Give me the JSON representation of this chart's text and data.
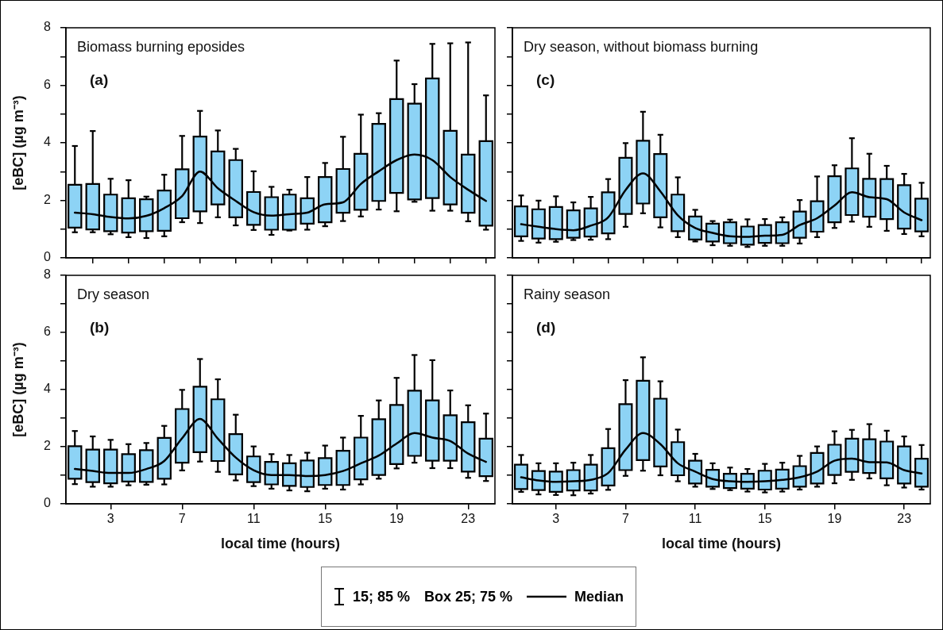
{
  "chart_data": [
    {
      "type": "box",
      "title": "Biomass burning eposides",
      "annotations": [
        "(a)"
      ],
      "ylabel": "[eBC] (µg m⁻³)",
      "color": "#8dd3f5",
      "x": [
        1,
        2,
        3,
        4,
        5,
        6,
        7,
        8,
        9,
        10,
        11,
        12,
        13,
        14,
        15,
        16,
        17,
        18,
        19,
        20,
        21,
        22,
        23,
        24
      ],
      "xlim": [
        0.5,
        24.5
      ],
      "xticks": [
        {
          "value": 2,
          "label": null
        },
        {
          "value": 4,
          "label": null
        },
        {
          "value": 6,
          "label": null
        },
        {
          "value": 8,
          "label": null
        },
        {
          "value": 10,
          "label": null
        },
        {
          "value": 12,
          "label": null
        },
        {
          "value": 14,
          "label": null
        },
        {
          "value": 16,
          "label": null
        },
        {
          "value": 18,
          "label": null
        },
        {
          "value": 20,
          "label": null
        },
        {
          "value": 22,
          "label": null
        },
        {
          "value": 24,
          "label": null
        }
      ],
      "ylim": [
        0,
        8
      ],
      "yticks": [
        0,
        {
          "value": 1,
          "label": null
        },
        2,
        {
          "value": 3,
          "label": null
        },
        4,
        {
          "value": 5,
          "label": null
        },
        6,
        {
          "value": 7,
          "label": null
        },
        8
      ],
      "tick_labels": "y",
      "series": [
        {
          "type": "line",
          "color": "#000000",
          "values": [
            1.57,
            1.52,
            1.42,
            1.37,
            1.46,
            1.73,
            2.15,
            3.0,
            2.42,
            1.98,
            1.59,
            1.47,
            1.52,
            1.57,
            1.86,
            1.93,
            2.57,
            3.01,
            3.4,
            3.59,
            3.4,
            2.81,
            2.37,
            1.98
          ]
        }
      ],
      "boxes": [
        {
          "low": 0.89,
          "q1": 1.05,
          "q3": 2.54,
          "high": 3.89
        },
        {
          "low": 0.89,
          "q1": 0.99,
          "q3": 2.57,
          "high": 4.41
        },
        {
          "low": 0.82,
          "q1": 0.93,
          "q3": 2.2,
          "high": 2.75
        },
        {
          "low": 0.72,
          "q1": 0.88,
          "q3": 2.07,
          "high": 2.7
        },
        {
          "low": 0.69,
          "q1": 0.93,
          "q3": 2.04,
          "high": 2.13
        },
        {
          "low": 0.75,
          "q1": 0.94,
          "q3": 2.34,
          "high": 2.89
        },
        {
          "low": 1.24,
          "q1": 1.38,
          "q3": 3.08,
          "high": 4.24
        },
        {
          "low": 1.21,
          "q1": 1.62,
          "q3": 4.22,
          "high": 5.11
        },
        {
          "low": 1.41,
          "q1": 1.86,
          "q3": 3.7,
          "high": 4.43
        },
        {
          "low": 1.13,
          "q1": 1.41,
          "q3": 3.4,
          "high": 3.79
        },
        {
          "low": 0.97,
          "q1": 1.15,
          "q3": 2.29,
          "high": 3.01
        },
        {
          "low": 0.8,
          "q1": 0.98,
          "q3": 2.11,
          "high": 2.47
        },
        {
          "low": 0.95,
          "q1": 0.98,
          "q3": 2.2,
          "high": 2.37
        },
        {
          "low": 0.98,
          "q1": 1.19,
          "q3": 2.07,
          "high": 2.81
        },
        {
          "low": 1.1,
          "q1": 1.24,
          "q3": 2.81,
          "high": 3.3
        },
        {
          "low": 1.28,
          "q1": 1.57,
          "q3": 3.09,
          "high": 4.21
        },
        {
          "low": 1.44,
          "q1": 1.67,
          "q3": 3.62,
          "high": 4.98
        },
        {
          "low": 1.68,
          "q1": 1.98,
          "q3": 4.66,
          "high": 5.03
        },
        {
          "low": 1.62,
          "q1": 2.26,
          "q3": 5.52,
          "high": 6.86
        },
        {
          "low": 1.95,
          "q1": 2.03,
          "q3": 5.36,
          "high": 6.04
        },
        {
          "low": 1.64,
          "q1": 2.08,
          "q3": 6.24,
          "high": 7.44
        },
        {
          "low": 1.64,
          "q1": 1.86,
          "q3": 4.42,
          "high": 7.46
        },
        {
          "low": 1.27,
          "q1": 1.57,
          "q3": 3.59,
          "high": 7.49
        },
        {
          "low": 0.98,
          "q1": 1.12,
          "q3": 4.06,
          "high": 5.65
        }
      ]
    },
    {
      "type": "box",
      "title": "Dry season, without biomass burning",
      "annotations": [
        "(c)"
      ],
      "color": "#8dd3f5",
      "x": [
        1,
        2,
        3,
        4,
        5,
        6,
        7,
        8,
        9,
        10,
        11,
        12,
        13,
        14,
        15,
        16,
        17,
        18,
        19,
        20,
        21,
        22,
        23,
        24
      ],
      "xlim": [
        0.5,
        24.5
      ],
      "xticks": [
        {
          "value": 2,
          "label": null
        },
        {
          "value": 4,
          "label": null
        },
        {
          "value": 6,
          "label": null
        },
        {
          "value": 8,
          "label": null
        },
        {
          "value": 10,
          "label": null
        },
        {
          "value": 12,
          "label": null
        },
        {
          "value": 14,
          "label": null
        },
        {
          "value": 16,
          "label": null
        },
        {
          "value": 18,
          "label": null
        },
        {
          "value": 20,
          "label": null
        },
        {
          "value": 22,
          "label": null
        },
        {
          "value": 24,
          "label": null
        }
      ],
      "ylim": [
        0,
        8
      ],
      "yticks": [
        0,
        {
          "value": 1,
          "label": null
        },
        2,
        {
          "value": 3,
          "label": null
        },
        4,
        {
          "value": 5,
          "label": null
        },
        6,
        {
          "value": 7,
          "label": null
        },
        8
      ],
      "tick_labels": false,
      "series": [
        {
          "type": "line",
          "color": "#000000",
          "values": [
            1.17,
            1.08,
            1.0,
            0.96,
            1.12,
            1.41,
            2.36,
            2.94,
            2.31,
            1.48,
            1.04,
            0.87,
            0.75,
            0.73,
            0.77,
            0.8,
            1.14,
            1.38,
            1.82,
            2.28,
            2.11,
            2.04,
            1.58,
            1.31
          ]
        }
      ],
      "boxes": [
        {
          "low": 0.59,
          "q1": 0.75,
          "q3": 1.79,
          "high": 2.17
        },
        {
          "low": 0.53,
          "q1": 0.67,
          "q3": 1.69,
          "high": 1.99
        },
        {
          "low": 0.56,
          "q1": 0.65,
          "q3": 1.77,
          "high": 2.14
        },
        {
          "low": 0.62,
          "q1": 0.7,
          "q3": 1.65,
          "high": 1.93
        },
        {
          "low": 0.63,
          "q1": 0.74,
          "q3": 1.72,
          "high": 2.12
        },
        {
          "low": 0.65,
          "q1": 0.85,
          "q3": 2.28,
          "high": 2.74
        },
        {
          "low": 1.08,
          "q1": 1.53,
          "q3": 3.48,
          "high": 3.99
        },
        {
          "low": 1.55,
          "q1": 1.89,
          "q3": 4.07,
          "high": 5.08
        },
        {
          "low": 1.06,
          "q1": 1.41,
          "q3": 3.61,
          "high": 4.28
        },
        {
          "low": 0.72,
          "q1": 0.93,
          "q3": 2.2,
          "high": 2.8
        },
        {
          "low": 0.57,
          "q1": 0.64,
          "q3": 1.44,
          "high": 1.67
        },
        {
          "low": 0.44,
          "q1": 0.57,
          "q3": 1.19,
          "high": 1.28
        },
        {
          "low": 0.42,
          "q1": 0.51,
          "q3": 1.24,
          "high": 1.33
        },
        {
          "low": 0.38,
          "q1": 0.46,
          "q3": 1.09,
          "high": 1.34
        },
        {
          "low": 0.42,
          "q1": 0.52,
          "q3": 1.14,
          "high": 1.35
        },
        {
          "low": 0.42,
          "q1": 0.51,
          "q3": 1.24,
          "high": 1.41
        },
        {
          "low": 0.5,
          "q1": 0.7,
          "q3": 1.61,
          "high": 2.01
        },
        {
          "low": 0.72,
          "q1": 0.91,
          "q3": 1.97,
          "high": 2.83
        },
        {
          "low": 1.04,
          "q1": 1.24,
          "q3": 2.84,
          "high": 3.22
        },
        {
          "low": 1.26,
          "q1": 1.49,
          "q3": 3.11,
          "high": 4.16
        },
        {
          "low": 1.08,
          "q1": 1.43,
          "q3": 2.75,
          "high": 3.62
        },
        {
          "low": 0.94,
          "q1": 1.35,
          "q3": 2.74,
          "high": 3.2
        },
        {
          "low": 0.83,
          "q1": 1.02,
          "q3": 2.53,
          "high": 2.92
        },
        {
          "low": 0.75,
          "q1": 0.92,
          "q3": 2.06,
          "high": 2.61
        }
      ]
    },
    {
      "type": "box",
      "title": "Dry season",
      "annotations": [
        "(b)"
      ],
      "xlabel": "local time (hours)",
      "ylabel": "[eBC] (µg m⁻³)",
      "color": "#8dd3f5",
      "x": [
        1,
        2,
        3,
        4,
        5,
        6,
        7,
        8,
        9,
        10,
        11,
        12,
        13,
        14,
        15,
        16,
        17,
        18,
        19,
        20,
        21,
        22,
        23,
        24
      ],
      "xlim": [
        0.5,
        24.5
      ],
      "xticks": [
        3,
        7,
        11,
        15,
        19,
        23
      ],
      "ylim": [
        0,
        8
      ],
      "yticks": [
        0,
        {
          "value": 1,
          "label": null
        },
        2,
        {
          "value": 3,
          "label": null
        },
        4,
        {
          "value": 5,
          "label": null
        },
        6,
        {
          "value": 7,
          "label": null
        },
        8
      ],
      "series": [
        {
          "type": "line",
          "color": "#000000",
          "values": [
            1.22,
            1.15,
            1.08,
            1.08,
            1.22,
            1.5,
            2.3,
            2.97,
            2.28,
            1.62,
            1.18,
            1.01,
            1.01,
            0.97,
            1.01,
            1.15,
            1.42,
            1.69,
            2.11,
            2.48,
            2.32,
            2.2,
            1.76,
            1.47
          ]
        }
      ],
      "boxes": [
        {
          "low": 0.69,
          "q1": 0.88,
          "q3": 2.02,
          "high": 2.55
        },
        {
          "low": 0.6,
          "q1": 0.76,
          "q3": 1.9,
          "high": 2.36
        },
        {
          "low": 0.6,
          "q1": 0.72,
          "q3": 1.9,
          "high": 2.24
        },
        {
          "low": 0.65,
          "q1": 0.78,
          "q3": 1.74,
          "high": 2.09
        },
        {
          "low": 0.67,
          "q1": 0.77,
          "q3": 1.88,
          "high": 2.13
        },
        {
          "low": 0.68,
          "q1": 0.88,
          "q3": 2.31,
          "high": 2.73
        },
        {
          "low": 1.17,
          "q1": 1.44,
          "q3": 3.32,
          "high": 3.99
        },
        {
          "low": 1.48,
          "q1": 1.81,
          "q3": 4.1,
          "high": 5.07
        },
        {
          "low": 1.12,
          "q1": 1.5,
          "q3": 3.66,
          "high": 4.36
        },
        {
          "low": 0.82,
          "q1": 1.03,
          "q3": 2.44,
          "high": 3.12
        },
        {
          "low": 0.62,
          "q1": 0.76,
          "q3": 1.66,
          "high": 2.01
        },
        {
          "low": 0.53,
          "q1": 0.68,
          "q3": 1.47,
          "high": 1.74
        },
        {
          "low": 0.47,
          "q1": 0.63,
          "q3": 1.42,
          "high": 1.71
        },
        {
          "low": 0.44,
          "q1": 0.59,
          "q3": 1.52,
          "high": 1.79
        },
        {
          "low": 0.53,
          "q1": 0.66,
          "q3": 1.6,
          "high": 2.04
        },
        {
          "low": 0.5,
          "q1": 0.66,
          "q3": 1.86,
          "high": 2.32
        },
        {
          "low": 0.68,
          "q1": 0.86,
          "q3": 2.32,
          "high": 3.08
        },
        {
          "low": 0.88,
          "q1": 1.01,
          "q3": 2.96,
          "high": 3.62
        },
        {
          "low": 1.24,
          "q1": 1.39,
          "q3": 3.46,
          "high": 4.41
        },
        {
          "low": 1.44,
          "q1": 1.68,
          "q3": 3.96,
          "high": 5.21
        },
        {
          "low": 1.25,
          "q1": 1.51,
          "q3": 3.62,
          "high": 5.03
        },
        {
          "low": 1.25,
          "q1": 1.51,
          "q3": 3.1,
          "high": 3.97
        },
        {
          "low": 0.91,
          "q1": 1.13,
          "q3": 2.86,
          "high": 3.45
        },
        {
          "low": 0.8,
          "q1": 0.97,
          "q3": 2.28,
          "high": 3.16
        }
      ]
    },
    {
      "type": "box",
      "title": "Rainy season",
      "annotations": [
        "(d)",
        "15; 85 %",
        "Box 25; 75 %"
      ],
      "xlabel": "local time (hours)",
      "color": "#8dd3f5",
      "legend": "bottom",
      "x": [
        1,
        2,
        3,
        4,
        5,
        6,
        7,
        8,
        9,
        10,
        11,
        12,
        13,
        14,
        15,
        16,
        17,
        18,
        19,
        20,
        21,
        22,
        23,
        24
      ],
      "xlim": [
        0.5,
        24.5
      ],
      "xticks": [
        3,
        7,
        11,
        15,
        19,
        23
      ],
      "ylim": [
        0,
        8
      ],
      "yticks": [
        0,
        {
          "value": 1,
          "label": null
        },
        2,
        {
          "value": 3,
          "label": null
        },
        4,
        {
          "value": 5,
          "label": null
        },
        6,
        {
          "value": 7,
          "label": null
        },
        8
      ],
      "tick_labels": "x",
      "series": [
        {
          "type": "line",
          "name": "Median",
          "color": "#000000",
          "values": [
            0.93,
            0.82,
            0.77,
            0.79,
            0.84,
            1.08,
            1.9,
            2.48,
            2.09,
            1.42,
            1.13,
            0.87,
            0.79,
            0.77,
            0.79,
            0.84,
            0.93,
            1.13,
            1.51,
            1.58,
            1.46,
            1.45,
            1.18,
            1.06
          ]
        }
      ],
      "boxes": [
        {
          "low": 0.42,
          "q1": 0.52,
          "q3": 1.37,
          "high": 1.71
        },
        {
          "low": 0.33,
          "q1": 0.48,
          "q3": 1.15,
          "high": 1.42
        },
        {
          "low": 0.31,
          "q1": 0.42,
          "q3": 1.13,
          "high": 1.42
        },
        {
          "low": 0.3,
          "q1": 0.47,
          "q3": 1.18,
          "high": 1.44
        },
        {
          "low": 0.36,
          "q1": 0.47,
          "q3": 1.37,
          "high": 1.71
        },
        {
          "low": 0.49,
          "q1": 0.64,
          "q3": 1.95,
          "high": 2.62
        },
        {
          "low": 0.98,
          "q1": 1.18,
          "q3": 3.49,
          "high": 4.33
        },
        {
          "low": 1.16,
          "q1": 1.53,
          "q3": 4.31,
          "high": 5.13
        },
        {
          "low": 1.0,
          "q1": 1.31,
          "q3": 3.68,
          "high": 4.29
        },
        {
          "low": 0.79,
          "q1": 1.0,
          "q3": 2.16,
          "high": 2.6
        },
        {
          "low": 0.6,
          "q1": 0.71,
          "q3": 1.51,
          "high": 1.75
        },
        {
          "low": 0.52,
          "q1": 0.6,
          "q3": 1.19,
          "high": 1.42
        },
        {
          "low": 0.48,
          "q1": 0.55,
          "q3": 1.05,
          "high": 1.27
        },
        {
          "low": 0.43,
          "q1": 0.53,
          "q3": 1.05,
          "high": 1.22
        },
        {
          "low": 0.4,
          "q1": 0.5,
          "q3": 1.16,
          "high": 1.4
        },
        {
          "low": 0.43,
          "q1": 0.53,
          "q3": 1.2,
          "high": 1.44
        },
        {
          "low": 0.5,
          "q1": 0.6,
          "q3": 1.32,
          "high": 1.68
        },
        {
          "low": 0.6,
          "q1": 0.71,
          "q3": 1.78,
          "high": 2.01
        },
        {
          "low": 0.72,
          "q1": 1.01,
          "q3": 2.07,
          "high": 2.54
        },
        {
          "low": 0.84,
          "q1": 1.12,
          "q3": 2.28,
          "high": 2.59
        },
        {
          "low": 0.89,
          "q1": 1.08,
          "q3": 2.26,
          "high": 2.79
        },
        {
          "low": 0.65,
          "q1": 0.89,
          "q3": 2.18,
          "high": 2.56
        },
        {
          "low": 0.57,
          "q1": 0.71,
          "q3": 2.01,
          "high": 2.36
        },
        {
          "low": 0.5,
          "q1": 0.6,
          "q3": 1.58,
          "high": 2.06
        }
      ]
    }
  ]
}
